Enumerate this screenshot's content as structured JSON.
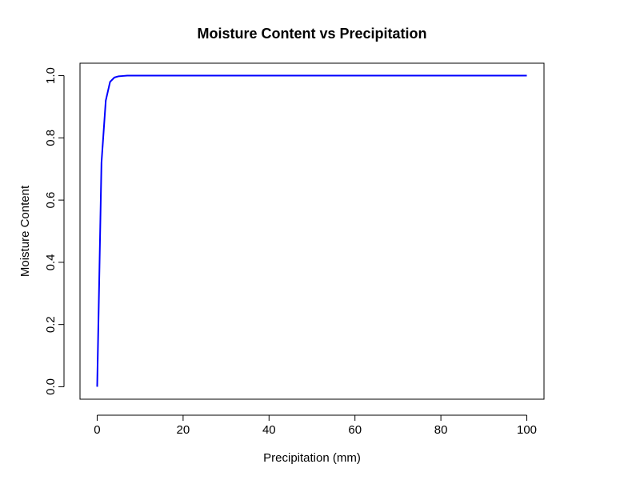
{
  "chart_data": {
    "type": "line",
    "title": "Moisture Content vs Precipitation",
    "xlabel": "Precipitation (mm)",
    "ylabel": "Moisture Content",
    "xlim": [
      -4,
      104
    ],
    "ylim": [
      -0.04,
      1.04
    ],
    "x_ticks": [
      0,
      20,
      40,
      60,
      80,
      100
    ],
    "y_ticks": [
      0.0,
      0.2,
      0.4,
      0.6,
      0.8,
      1.0
    ],
    "x_tick_labels": [
      "0",
      "20",
      "40",
      "60",
      "80",
      "100"
    ],
    "y_tick_labels": [
      "0.0",
      "0.2",
      "0.4",
      "0.6",
      "0.8",
      "1.0"
    ],
    "grid": false,
    "series": [
      {
        "color": "#0000ff",
        "x": [
          0,
          1,
          2,
          3,
          4,
          5,
          6,
          7,
          8,
          10,
          15,
          20,
          30,
          40,
          50,
          60,
          70,
          80,
          90,
          100
        ],
        "y": [
          0.0,
          0.72,
          0.92,
          0.98,
          0.994,
          0.998,
          0.999,
          1.0,
          1.0,
          1.0,
          1.0,
          1.0,
          1.0,
          1.0,
          1.0,
          1.0,
          1.0,
          1.0,
          1.0,
          1.0
        ]
      }
    ]
  }
}
